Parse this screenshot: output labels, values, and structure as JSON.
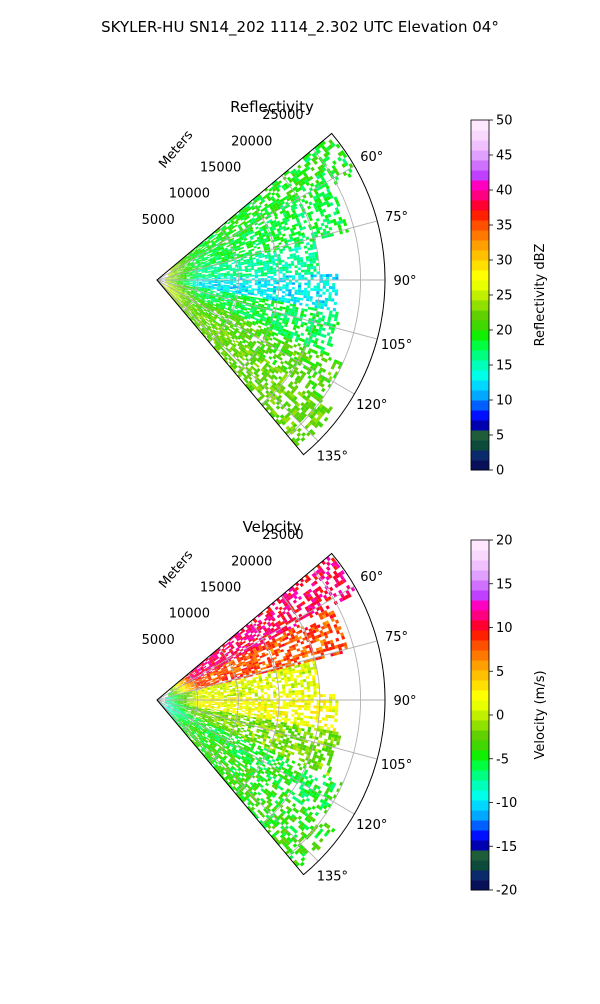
{
  "figure": {
    "suptitle": "SKYLER-HU  SN14_202  1114_2.302 UTC Elevation 04°"
  },
  "chart_data": [
    {
      "type": "heatmap",
      "subtype": "polar-ppi-sector",
      "title": "Reflectivity",
      "range_label": "Meters",
      "range_ticks": [
        5000,
        10000,
        15000,
        20000,
        25000
      ],
      "range_tick_labels": [
        "5000",
        "10000",
        "15000",
        "20000",
        "25000"
      ],
      "range_max": 28000,
      "angle_range_deg": [
        50,
        140
      ],
      "angle_ticks": [
        60,
        75,
        90,
        105,
        120,
        135
      ],
      "angle_tick_labels": [
        "60°",
        "75°",
        "90°",
        "105°",
        "120°",
        "135°"
      ],
      "grid": true,
      "colorbar": {
        "label": "Reflectivity dBZ",
        "range": [
          0,
          50
        ],
        "ticks": [
          0,
          5,
          10,
          15,
          20,
          25,
          30,
          35,
          40,
          45,
          50
        ],
        "tick_labels": [
          "0",
          "5",
          "10",
          "15",
          "20",
          "25",
          "30",
          "35",
          "40",
          "45",
          "50"
        ],
        "colors": [
          "#08105a",
          "#0b2a6c",
          "#0c4a3a",
          "#1f5c3a",
          "#0000b0",
          "#0010ff",
          "#0060ff",
          "#00a8ff",
          "#00d8ff",
          "#00ffe8",
          "#00ffb8",
          "#00ff80",
          "#00ff40",
          "#10f000",
          "#40d800",
          "#60d000",
          "#90e000",
          "#c0f000",
          "#e8ff00",
          "#ffff00",
          "#ffe000",
          "#ffc000",
          "#ffa000",
          "#ff7800",
          "#ff5000",
          "#ff2000",
          "#ff0030",
          "#ff0080",
          "#ff00c0",
          "#c040ff",
          "#d070ff",
          "#e0a0ff",
          "#f0c0ff",
          "#f8d8ff",
          "#ffe8ff"
        ]
      },
      "sectors": [
        {
          "angles": [
            50,
            62
          ],
          "ranges": [
            2000,
            27500
          ],
          "value": 19
        },
        {
          "angles": [
            62,
            76
          ],
          "ranges": [
            1500,
            24000
          ],
          "value": 18
        },
        {
          "angles": [
            76,
            88
          ],
          "ranges": [
            1000,
            20000
          ],
          "value": 16
        },
        {
          "angles": [
            88,
            100
          ],
          "ranges": [
            1000,
            22000
          ],
          "value": 13
        },
        {
          "angles": [
            100,
            114
          ],
          "ranges": [
            1000,
            23000
          ],
          "value": 18
        },
        {
          "angles": [
            114,
            126
          ],
          "ranges": [
            1500,
            25000
          ],
          "value": 21
        },
        {
          "angles": [
            126,
            140
          ],
          "ranges": [
            500,
            27000
          ],
          "value": 22
        }
      ],
      "near_range_value": 27
    },
    {
      "type": "heatmap",
      "subtype": "polar-ppi-sector",
      "title": "Velocity",
      "range_label": "Meters",
      "range_ticks": [
        5000,
        10000,
        15000,
        20000,
        25000
      ],
      "range_tick_labels": [
        "5000",
        "10000",
        "15000",
        "20000",
        "25000"
      ],
      "range_max": 28000,
      "angle_range_deg": [
        50,
        140
      ],
      "angle_ticks": [
        60,
        75,
        90,
        105,
        120,
        135
      ],
      "angle_tick_labels": [
        "60°",
        "75°",
        "90°",
        "105°",
        "120°",
        "135°"
      ],
      "grid": true,
      "colorbar": {
        "label": "Velocity (m/s)",
        "range": [
          -20,
          20
        ],
        "ticks": [
          -20,
          -15,
          -10,
          -5,
          0,
          5,
          10,
          15,
          20
        ],
        "tick_labels": [
          "-20",
          "-15",
          "-10",
          "-5",
          "0",
          "5",
          "10",
          "15",
          "20"
        ],
        "colors": [
          "#08105a",
          "#0b2a6c",
          "#0c4a3a",
          "#1f5c3a",
          "#0000b0",
          "#0010ff",
          "#0060ff",
          "#00a8ff",
          "#00d8ff",
          "#00ffe8",
          "#00ffb8",
          "#00ff80",
          "#00ff40",
          "#10f000",
          "#40d800",
          "#60d000",
          "#90e000",
          "#c0f000",
          "#e8ff00",
          "#ffff00",
          "#ffe000",
          "#ffc000",
          "#ffa000",
          "#ff7800",
          "#ff5000",
          "#ff2000",
          "#ff0030",
          "#ff0080",
          "#ff00c0",
          "#c040ff",
          "#d070ff",
          "#e0a0ff",
          "#f0c0ff",
          "#f8d8ff",
          "#ffe8ff"
        ]
      },
      "sectors": [
        {
          "angles": [
            50,
            62
          ],
          "ranges": [
            2000,
            27500
          ],
          "value": 11
        },
        {
          "angles": [
            62,
            76
          ],
          "ranges": [
            1500,
            24000
          ],
          "value": 8
        },
        {
          "angles": [
            76,
            88
          ],
          "ranges": [
            1000,
            20000
          ],
          "value": 1
        },
        {
          "angles": [
            88,
            100
          ],
          "ranges": [
            1000,
            22000
          ],
          "value": 2
        },
        {
          "angles": [
            100,
            114
          ],
          "ranges": [
            1000,
            23000
          ],
          "value": -2
        },
        {
          "angles": [
            114,
            126
          ],
          "ranges": [
            1500,
            25000
          ],
          "value": -5
        },
        {
          "angles": [
            126,
            140
          ],
          "ranges": [
            500,
            27000
          ],
          "value": -4
        }
      ],
      "near_range_value": -10
    }
  ]
}
